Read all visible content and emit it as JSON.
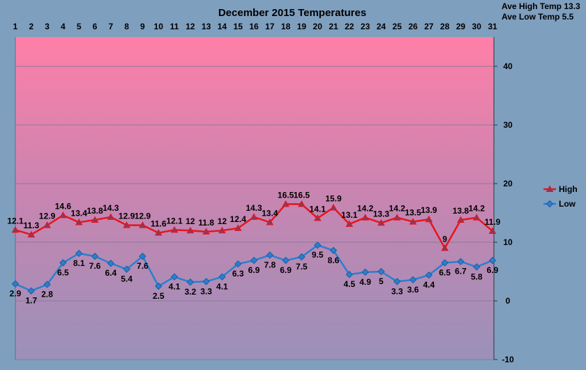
{
  "chart_data": {
    "type": "line",
    "title": "December 2015 Temperatures",
    "annotations": [
      "Ave High Temp 13.3",
      "Ave Low  Temp 5.5"
    ],
    "x": [
      1,
      2,
      3,
      4,
      5,
      6,
      7,
      8,
      9,
      10,
      11,
      12,
      13,
      14,
      15,
      16,
      17,
      18,
      19,
      20,
      21,
      22,
      23,
      24,
      25,
      26,
      27,
      28,
      29,
      30,
      31
    ],
    "x_tick_labels": [
      "1",
      "2",
      "3",
      "4",
      "5",
      "6",
      "7",
      "8",
      "9",
      "10",
      "11",
      "12",
      "13",
      "14",
      "15",
      "16",
      "17",
      "18",
      "19",
      "20",
      "21",
      "22",
      "23",
      "24",
      "25",
      "26",
      "27",
      "28",
      "29",
      "30",
      "31"
    ],
    "ylim": [
      -10,
      45
    ],
    "y_ticks": [
      -10,
      0,
      10,
      20,
      30,
      40
    ],
    "y_tick_labels": [
      "-10",
      "0",
      "10",
      "20",
      "30",
      "40"
    ],
    "grid": true,
    "legend": "right",
    "series": [
      {
        "name": "High",
        "color": "#e8141e",
        "marker": "triangle",
        "values": [
          12.1,
          11.3,
          12.9,
          14.6,
          13.4,
          13.8,
          14.3,
          12.9,
          12.9,
          11.6,
          12.1,
          12,
          11.8,
          12,
          12.4,
          14.3,
          13.4,
          16.5,
          16.5,
          14.1,
          15.9,
          13.1,
          14.2,
          13.3,
          14.2,
          13.5,
          13.9,
          9,
          13.8,
          14.2,
          11.9
        ],
        "labels": [
          "12.1",
          "11.3",
          "12.9",
          "14.6",
          "13.4",
          "13.8",
          "14.3",
          "12.9",
          "12.9",
          "11.6",
          "12.1",
          "12",
          "11.8",
          "12",
          "12.4",
          "14.3",
          "13.4",
          "16.5",
          "16.5",
          "14.1",
          "15.9",
          "13.1",
          "14.2",
          "13.3",
          "14.2",
          "13.5",
          "13.9",
          "9",
          "13.8",
          "14.2",
          "11.9"
        ]
      },
      {
        "name": "Low",
        "color": "#2a7fcf",
        "marker": "diamond",
        "values": [
          2.9,
          1.7,
          2.8,
          6.5,
          8.1,
          7.6,
          6.4,
          5.4,
          7.6,
          2.5,
          4.1,
          3.2,
          3.3,
          4.1,
          6.3,
          6.9,
          7.8,
          6.9,
          7.5,
          9.5,
          8.6,
          4.5,
          4.9,
          5,
          3.3,
          3.6,
          4.4,
          6.5,
          6.7,
          5.8,
          6.9
        ],
        "labels": [
          "2.9",
          "1.7",
          "2.8",
          "6.5",
          "8.1",
          "7.6",
          "6.4",
          "5.4",
          "7.6",
          "2.5",
          "4.1",
          "3.2",
          "3.3",
          "4.1",
          "6.3",
          "6.9",
          "7.8",
          "6.9",
          "7.5",
          "9.5",
          "8.6",
          "4.5",
          "4.9",
          "5",
          "3.3",
          "3.6",
          "4.4",
          "6.5",
          "6.7",
          "5.8",
          "6.9"
        ]
      }
    ]
  }
}
